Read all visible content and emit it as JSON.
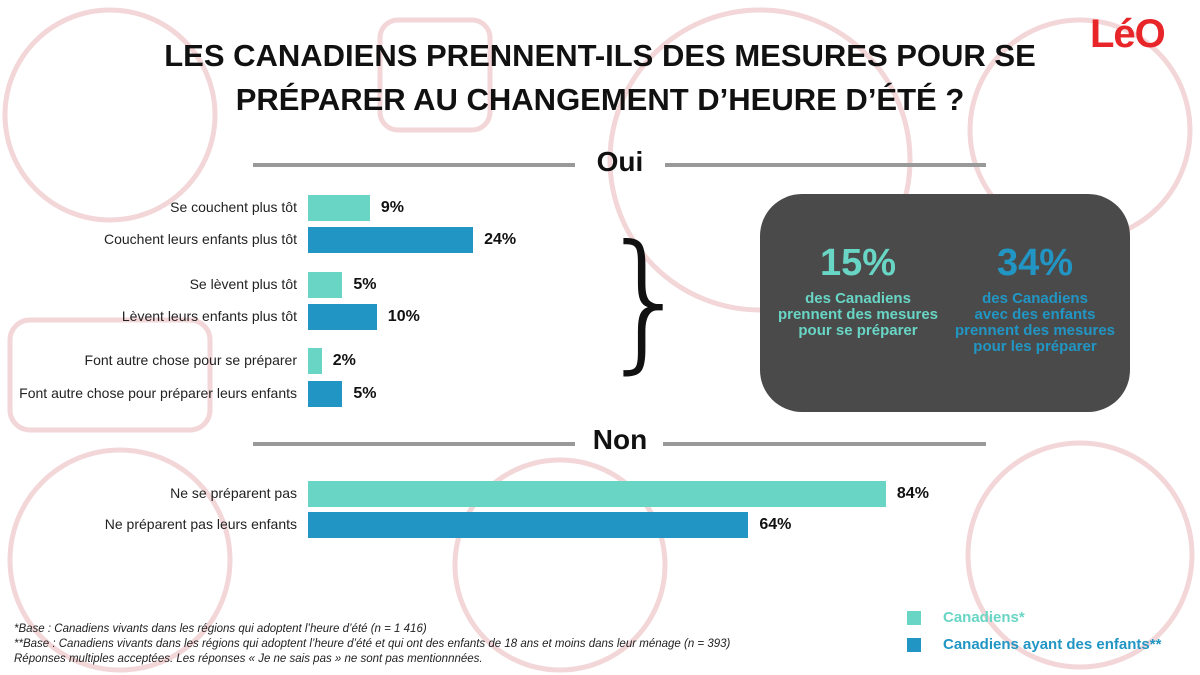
{
  "title_line1": "LES CANADIENS PRENNENT-ILS DES MESURES POUR SE",
  "title_line2": "PRÉPARER AU CHANGEMENT D’HEURE D’ÉTÉ ?",
  "logo": "LéO",
  "colors": {
    "canadiens": "#68d5c5",
    "enfants": "#2196c4",
    "box": "#4a4a4a",
    "logo": "#e8262a"
  },
  "chart_data": {
    "type": "bar",
    "orientation": "horizontal",
    "xlim": [
      0,
      100
    ],
    "sections": [
      {
        "title": "Oui",
        "categories": [
          "Se couchent plus tôt",
          "Couchent leurs enfants plus tôt",
          "Se lèvent plus tôt",
          "Lèvent leurs enfants plus tôt",
          "Font autre chose pour se préparer",
          "Font autre chose pour préparer leurs enfants"
        ],
        "values": [
          9,
          24,
          5,
          10,
          2,
          5
        ],
        "series": [
          "canadiens",
          "enfants",
          "canadiens",
          "enfants",
          "canadiens",
          "enfants"
        ]
      },
      {
        "title": "Non",
        "categories": [
          "Ne se préparent pas",
          "Ne préparent pas leurs enfants"
        ],
        "values": [
          84,
          64
        ],
        "series": [
          "canadiens",
          "enfants"
        ]
      }
    ],
    "legend": [
      {
        "key": "canadiens",
        "name": "Canadiens*"
      },
      {
        "key": "enfants",
        "name": "Canadiens ayant des enfants**"
      }
    ],
    "legend_position": "bottom-right"
  },
  "summary": [
    {
      "value": "15%",
      "text": [
        "des Canadiens",
        "prennent des mesures",
        "pour se préparer"
      ]
    },
    {
      "value": "34%",
      "text": [
        "des Canadiens",
        "avec des enfants",
        "prennent des mesures",
        "pour les préparer"
      ]
    }
  ],
  "footnotes": [
    "*Base : Canadiens vivants dans les régions qui adoptent l’heure d’été (n = 1 416)",
    "**Base : Canadiens vivants dans les régions qui adoptent l’heure d’été et qui ont des enfants de 18 ans et moins dans leur ménage (n = 393)",
    "Réponses multiples acceptées. Les réponses « Je ne sais pas » ne sont pas mentionnnées."
  ]
}
